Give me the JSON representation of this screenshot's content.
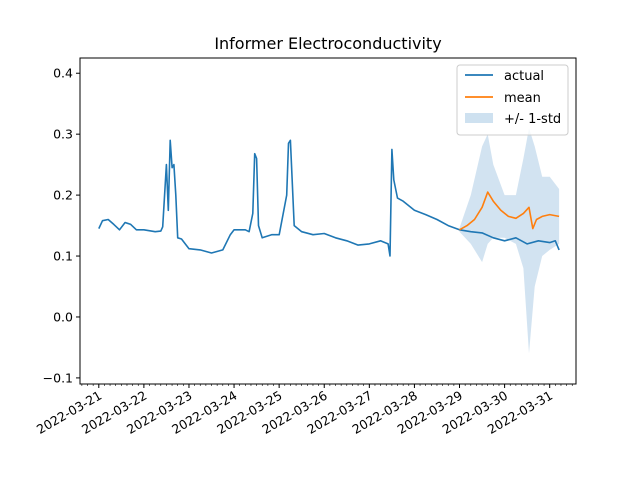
{
  "chart_data": {
    "type": "line",
    "title": "Informer Electroconductivity",
    "xlabel": "",
    "ylabel": "",
    "xlim": [
      "2022-03-20T14:00",
      "2022-03-31T14:00"
    ],
    "ylim": [
      -0.11,
      0.425
    ],
    "yticks": [
      -0.1,
      0.0,
      0.1,
      0.2,
      0.3,
      0.4
    ],
    "ytick_labels": [
      "−0.1",
      "0.0",
      "0.1",
      "0.2",
      "0.3",
      "0.4"
    ],
    "xticks": [
      "2022-03-21",
      "2022-03-22",
      "2022-03-23",
      "2022-03-24",
      "2022-03-25",
      "2022-03-26",
      "2022-03-27",
      "2022-03-28",
      "2022-03-29",
      "2022-03-30",
      "2022-03-31"
    ],
    "grid": false,
    "legend_position": "top-right",
    "legend": [
      "actual",
      "mean",
      "+/- 1-std"
    ],
    "colors": {
      "actual": "#1f77b4",
      "mean": "#ff7f0e",
      "band": "#a6c8e3"
    },
    "series": [
      {
        "name": "actual",
        "points": [
          [
            "2022-03-21T00:00",
            0.145
          ],
          [
            "2022-03-21T02:00",
            0.158
          ],
          [
            "2022-03-21T05:00",
            0.16
          ],
          [
            "2022-03-21T08:00",
            0.152
          ],
          [
            "2022-03-21T11:00",
            0.143
          ],
          [
            "2022-03-21T14:00",
            0.155
          ],
          [
            "2022-03-21T17:00",
            0.152
          ],
          [
            "2022-03-21T20:00",
            0.143
          ],
          [
            "2022-03-22T00:00",
            0.143
          ],
          [
            "2022-03-22T06:00",
            0.14
          ],
          [
            "2022-03-22T09:00",
            0.141
          ],
          [
            "2022-03-22T10:00",
            0.148
          ],
          [
            "2022-03-22T12:00",
            0.25
          ],
          [
            "2022-03-22T13:00",
            0.175
          ],
          [
            "2022-03-22T14:00",
            0.29
          ],
          [
            "2022-03-22T15:00",
            0.245
          ],
          [
            "2022-03-22T16:00",
            0.25
          ],
          [
            "2022-03-22T17:00",
            0.2
          ],
          [
            "2022-03-22T18:00",
            0.13
          ],
          [
            "2022-03-22T20:00",
            0.128
          ],
          [
            "2022-03-23T00:00",
            0.112
          ],
          [
            "2022-03-23T06:00",
            0.11
          ],
          [
            "2022-03-23T12:00",
            0.105
          ],
          [
            "2022-03-23T18:00",
            0.11
          ],
          [
            "2022-03-23T22:00",
            0.135
          ],
          [
            "2022-03-24T00:00",
            0.143
          ],
          [
            "2022-03-24T06:00",
            0.143
          ],
          [
            "2022-03-24T08:00",
            0.14
          ],
          [
            "2022-03-24T10:00",
            0.17
          ],
          [
            "2022-03-24T11:00",
            0.268
          ],
          [
            "2022-03-24T12:00",
            0.26
          ],
          [
            "2022-03-24T13:00",
            0.15
          ],
          [
            "2022-03-24T15:00",
            0.13
          ],
          [
            "2022-03-24T20:00",
            0.135
          ],
          [
            "2022-03-25T00:00",
            0.135
          ],
          [
            "2022-03-25T04:00",
            0.2
          ],
          [
            "2022-03-25T05:00",
            0.285
          ],
          [
            "2022-03-25T06:00",
            0.29
          ],
          [
            "2022-03-25T08:00",
            0.15
          ],
          [
            "2022-03-25T12:00",
            0.14
          ],
          [
            "2022-03-25T18:00",
            0.135
          ],
          [
            "2022-03-26T00:00",
            0.137
          ],
          [
            "2022-03-26T06:00",
            0.13
          ],
          [
            "2022-03-26T12:00",
            0.125
          ],
          [
            "2022-03-26T18:00",
            0.118
          ],
          [
            "2022-03-27T00:00",
            0.12
          ],
          [
            "2022-03-27T06:00",
            0.125
          ],
          [
            "2022-03-27T10:00",
            0.12
          ],
          [
            "2022-03-27T11:00",
            0.1
          ],
          [
            "2022-03-27T12:00",
            0.275
          ],
          [
            "2022-03-27T13:00",
            0.225
          ],
          [
            "2022-03-27T15:00",
            0.195
          ],
          [
            "2022-03-27T18:00",
            0.19
          ],
          [
            "2022-03-28T00:00",
            0.175
          ],
          [
            "2022-03-28T06:00",
            0.168
          ],
          [
            "2022-03-28T12:00",
            0.16
          ],
          [
            "2022-03-28T18:00",
            0.15
          ],
          [
            "2022-03-29T00:00",
            0.143
          ],
          [
            "2022-03-29T06:00",
            0.14
          ],
          [
            "2022-03-29T12:00",
            0.138
          ],
          [
            "2022-03-29T18:00",
            0.13
          ],
          [
            "2022-03-30T00:00",
            0.125
          ],
          [
            "2022-03-30T06:00",
            0.13
          ],
          [
            "2022-03-30T12:00",
            0.12
          ],
          [
            "2022-03-30T18:00",
            0.125
          ],
          [
            "2022-03-31T00:00",
            0.122
          ],
          [
            "2022-03-31T03:00",
            0.125
          ],
          [
            "2022-03-31T05:00",
            0.11
          ]
        ]
      },
      {
        "name": "mean",
        "points": [
          [
            "2022-03-29T00:00",
            0.143
          ],
          [
            "2022-03-29T04:00",
            0.15
          ],
          [
            "2022-03-29T08:00",
            0.16
          ],
          [
            "2022-03-29T12:00",
            0.18
          ],
          [
            "2022-03-29T15:00",
            0.205
          ],
          [
            "2022-03-29T18:00",
            0.19
          ],
          [
            "2022-03-29T22:00",
            0.175
          ],
          [
            "2022-03-30T02:00",
            0.165
          ],
          [
            "2022-03-30T06:00",
            0.162
          ],
          [
            "2022-03-30T10:00",
            0.17
          ],
          [
            "2022-03-30T13:00",
            0.18
          ],
          [
            "2022-03-30T15:00",
            0.145
          ],
          [
            "2022-03-30T17:00",
            0.16
          ],
          [
            "2022-03-30T20:00",
            0.165
          ],
          [
            "2022-03-31T00:00",
            0.168
          ],
          [
            "2022-03-31T05:00",
            0.165
          ]
        ]
      }
    ],
    "band": {
      "name": "+/- 1-std",
      "points": [
        [
          "2022-03-29T00:00",
          0.14,
          0.146
        ],
        [
          "2022-03-29T06:00",
          0.12,
          0.2
        ],
        [
          "2022-03-29T12:00",
          0.09,
          0.28
        ],
        [
          "2022-03-29T15:00",
          0.12,
          0.3
        ],
        [
          "2022-03-29T18:00",
          0.13,
          0.25
        ],
        [
          "2022-03-30T00:00",
          0.13,
          0.2
        ],
        [
          "2022-03-30T06:00",
          0.12,
          0.2
        ],
        [
          "2022-03-30T10:00",
          0.08,
          0.26
        ],
        [
          "2022-03-30T13:00",
          -0.06,
          0.31
        ],
        [
          "2022-03-30T16:00",
          0.05,
          0.28
        ],
        [
          "2022-03-30T20:00",
          0.1,
          0.23
        ],
        [
          "2022-03-31T00:00",
          0.11,
          0.23
        ],
        [
          "2022-03-31T05:00",
          0.12,
          0.21
        ]
      ]
    }
  }
}
